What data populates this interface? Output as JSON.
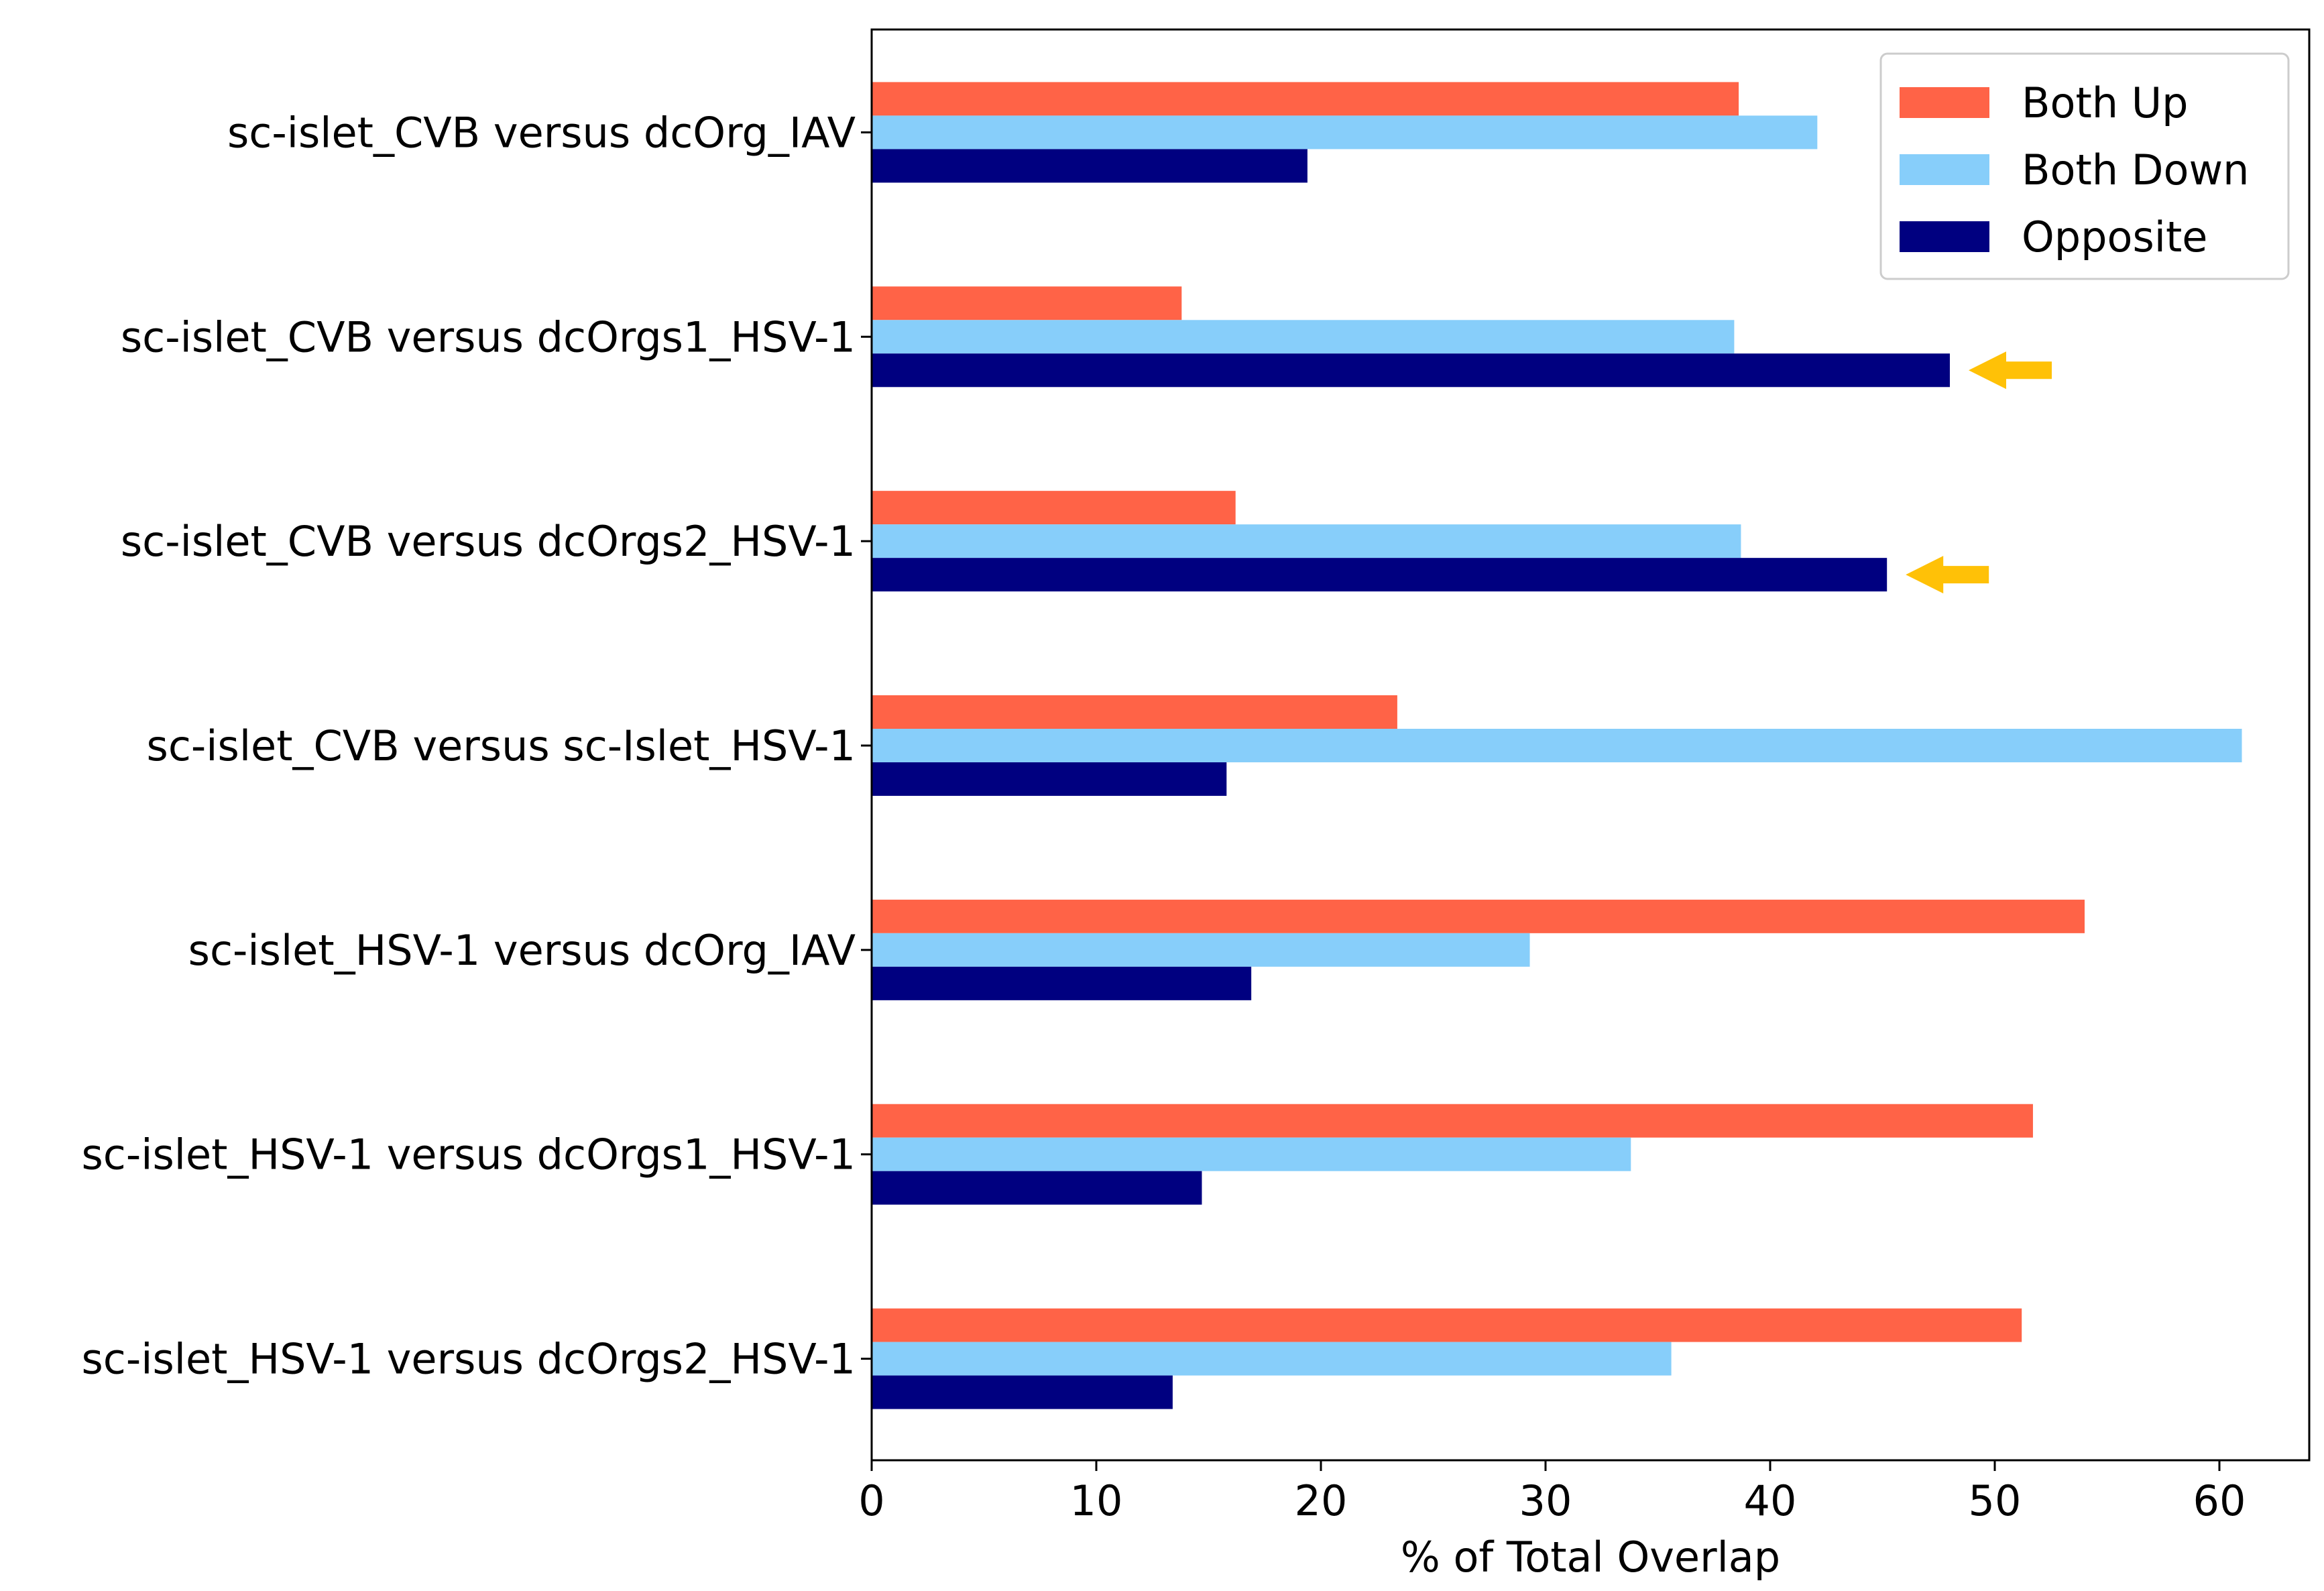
{
  "chart_data": {
    "type": "bar",
    "orientation": "horizontal",
    "title": "",
    "xlabel": "% of Total Overlap",
    "ylabel": "",
    "xlim": [
      0,
      64
    ],
    "xticks": [
      0,
      10,
      20,
      30,
      40,
      50,
      60
    ],
    "grid": false,
    "legend_position": "top-right",
    "categories": [
      "sc-islet_CVB versus dcOrg_IAV",
      "sc-islet_CVB versus dcOrgs1_HSV-1",
      "sc-islet_CVB versus dcOrgs2_HSV-1",
      "sc-islet_CVB versus sc-Islet_HSV-1",
      "sc-islet_HSV-1 versus dcOrg_IAV",
      "sc-islet_HSV-1 versus dcOrgs1_HSV-1",
      "sc-islet_HSV-1 versus dcOrgs2_HSV-1"
    ],
    "series": [
      {
        "name": "Both Up",
        "color": "#FF6347",
        "values": [
          38.6,
          13.8,
          16.2,
          23.4,
          54.0,
          51.7,
          51.2
        ]
      },
      {
        "name": "Both Down",
        "color": "#87CEFA",
        "values": [
          42.1,
          38.4,
          38.7,
          61.0,
          29.3,
          33.8,
          35.6
        ]
      },
      {
        "name": "Opposite",
        "color": "#000080",
        "values": [
          19.4,
          48.0,
          45.2,
          15.8,
          16.9,
          14.7,
          13.4
        ]
      }
    ],
    "annotations": [
      {
        "type": "arrow",
        "color": "#FFC107",
        "category": "sc-islet_CVB versus dcOrgs1_HSV-1",
        "series": "Opposite",
        "points_to": 48.0
      },
      {
        "type": "arrow",
        "color": "#FFC107",
        "category": "sc-islet_CVB versus dcOrgs2_HSV-1",
        "series": "Opposite",
        "points_to": 45.2
      }
    ]
  }
}
